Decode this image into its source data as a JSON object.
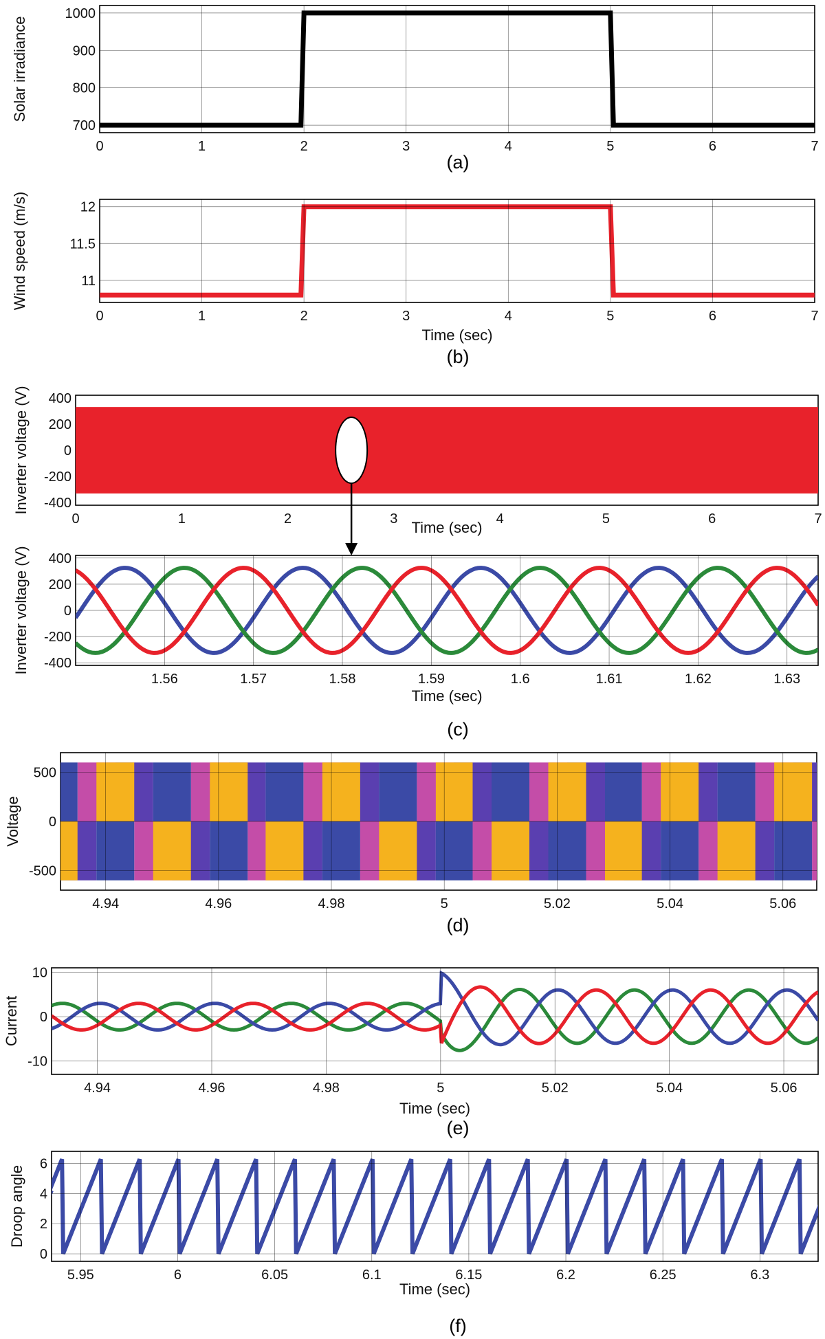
{
  "chart_data": [
    {
      "id": "a",
      "type": "line",
      "caption": "(a)",
      "xlabel": "",
      "ylabel": "Solar irradiance",
      "xlim": [
        0,
        7
      ],
      "ylim": [
        680,
        1020
      ],
      "xticks": [
        "0",
        "1",
        "2",
        "3",
        "4",
        "5",
        "6",
        "7"
      ],
      "yticks": [
        "700",
        "800",
        "900",
        "1000"
      ],
      "grid": true,
      "series": [
        {
          "color": "#000000",
          "x": [
            0,
            1.97,
            2.0,
            5.0,
            5.03,
            7
          ],
          "y": [
            700,
            700,
            1000,
            1000,
            700,
            700
          ]
        }
      ]
    },
    {
      "id": "b",
      "type": "line",
      "caption": "(b)",
      "xlabel": "Time (sec)",
      "ylabel": "Wind speed (m/s)",
      "xlim": [
        0,
        7
      ],
      "ylim": [
        10.7,
        12.1
      ],
      "xticks": [
        "0",
        "1",
        "2",
        "3",
        "4",
        "5",
        "6",
        "7"
      ],
      "yticks": [
        "11",
        "11.5",
        "12"
      ],
      "grid": true,
      "series": [
        {
          "color": "#e8222b",
          "x": [
            0,
            1.97,
            2.0,
            5.0,
            5.03,
            7
          ],
          "y": [
            10.8,
            10.8,
            12,
            12,
            10.8,
            10.8
          ]
        }
      ]
    },
    {
      "id": "c1",
      "type": "line",
      "caption": "",
      "xlabel": "Time (sec)",
      "ylabel": "Inverter voltage (V)",
      "xlim": [
        0,
        7
      ],
      "ylim": [
        -420,
        420
      ],
      "xticks": [
        "0",
        "1",
        "2",
        "3",
        "4",
        "5",
        "6",
        "7"
      ],
      "yticks": [
        "-400",
        "-200",
        "0",
        "200",
        "400"
      ],
      "grid": false,
      "band": {
        "color": "#e8222b",
        "ymin": -330,
        "ymax": 330
      },
      "zoom_marker_x": 2.6
    },
    {
      "id": "c2",
      "type": "line",
      "caption": "(c)",
      "xlabel": "Time (sec)",
      "ylabel": "Inverter voltage (V)",
      "xlim": [
        1.55,
        1.6335
      ],
      "ylim": [
        -420,
        420
      ],
      "xticks": [
        "1.56",
        "1.57",
        "1.58",
        "1.59",
        "1.6",
        "1.61",
        "1.62",
        "1.63"
      ],
      "yticks": [
        "-400",
        "-200",
        "0",
        "200",
        "400"
      ],
      "grid": true,
      "waves": {
        "amplitude": 325,
        "frequency_hz": 50,
        "series": [
          {
            "color": "#3b4aa6",
            "phase_deg": 170
          },
          {
            "color": "#2b8a3a",
            "phase_deg": 50
          },
          {
            "color": "#e8222b",
            "phase_deg": -70
          }
        ]
      }
    },
    {
      "id": "d",
      "type": "area",
      "caption": "(d)",
      "xlabel": "",
      "ylabel": "Voltage",
      "xlim": [
        4.932,
        5.066
      ],
      "ylim": [
        -700,
        700
      ],
      "xticks": [
        "4.94",
        "4.96",
        "4.98",
        "5",
        "5.02",
        "5.04",
        "5.06"
      ],
      "yticks": [
        "-500",
        "0",
        "500"
      ],
      "grid": true,
      "pulses": {
        "amplitude": 600,
        "frequency_hz": 50,
        "series": [
          {
            "color": "#5a3fb0",
            "phase_deg": 0
          },
          {
            "color": "#c44da8",
            "phase_deg": 120
          },
          {
            "color": "#3b4aa6",
            "phase_deg": -120
          },
          {
            "color": "#f5b21e",
            "phase_deg": 60
          }
        ]
      }
    },
    {
      "id": "e",
      "type": "line",
      "caption": "(e)",
      "xlabel": "Time (sec)",
      "ylabel": "Current",
      "xlim": [
        4.932,
        5.066
      ],
      "ylim": [
        -13,
        11
      ],
      "xticks": [
        "4.94",
        "4.96",
        "4.98",
        "5",
        "5.02",
        "5.04",
        "5.06"
      ],
      "yticks": [
        "-10",
        "0",
        "10"
      ],
      "grid": true,
      "transient": {
        "t0": 5.0,
        "amp_before": 3,
        "amp_after": 6,
        "frequency_hz": 50,
        "series": [
          {
            "color": "#2b8a3a",
            "phase_deg": 200
          },
          {
            "color": "#3b4aa6",
            "phase_deg": 80
          },
          {
            "color": "#e8222b",
            "phase_deg": -40
          }
        ]
      }
    },
    {
      "id": "f",
      "type": "line",
      "caption": "(f)",
      "xlabel": "Time (sec)",
      "ylabel": "Droop angle",
      "xlim": [
        5.935,
        6.33
      ],
      "ylim": [
        -0.5,
        6.8
      ],
      "xticks": [
        "5.95",
        "6",
        "6.05",
        "6.1",
        "6.15",
        "6.2",
        "6.25",
        "6.3"
      ],
      "yticks": [
        "0",
        "2",
        "4",
        "6"
      ],
      "grid": true,
      "sawtooth": {
        "color": "#3b4aa6",
        "period": 0.02,
        "max": 6.28,
        "t_start": 5.941
      }
    }
  ]
}
